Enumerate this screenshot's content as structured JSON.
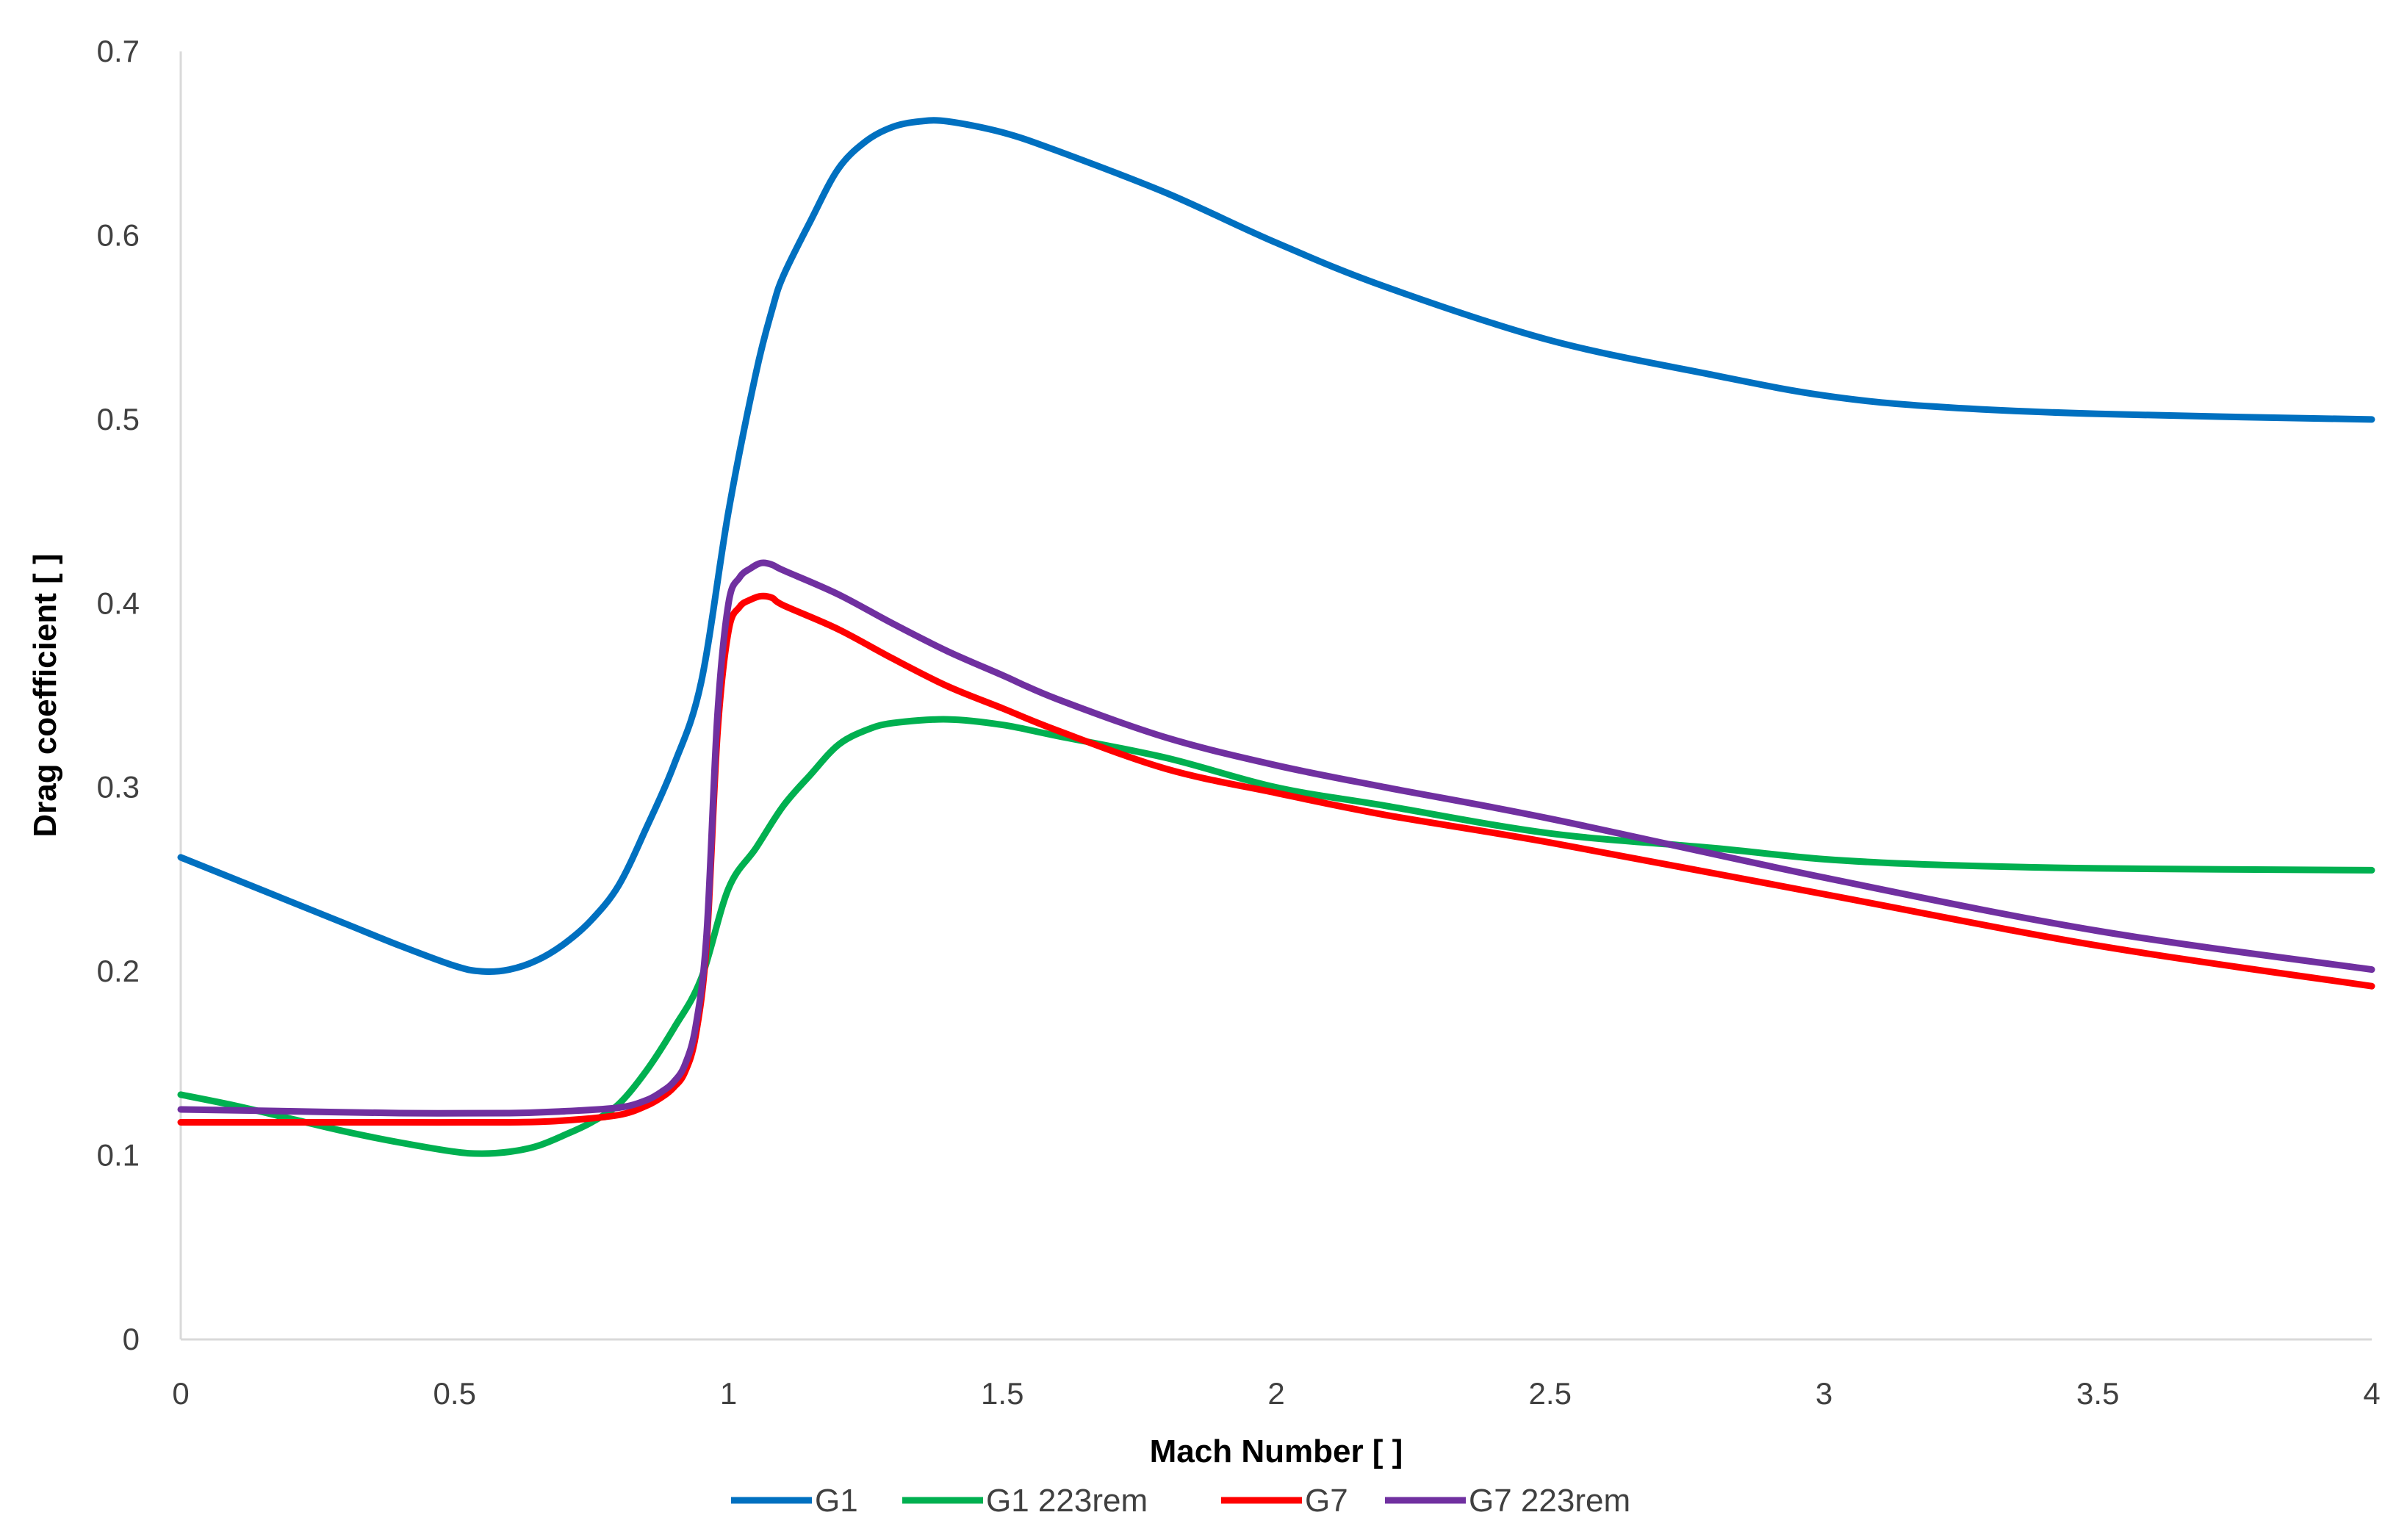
{
  "chart_data": {
    "type": "line",
    "xlabel": "Mach Number [ ]",
    "ylabel": "Drag coefficient [ ]",
    "xlim": [
      0,
      4
    ],
    "ylim": [
      0,
      0.7
    ],
    "xticks": [
      "0",
      "0.5",
      "1",
      "1.5",
      "2",
      "2.5",
      "3",
      "3.5",
      "4"
    ],
    "yticks": [
      "0",
      "0.1",
      "0.2",
      "0.3",
      "0.4",
      "0.5",
      "0.6",
      "0.7"
    ],
    "grid": false,
    "legend_position": "bottom",
    "series": [
      {
        "name": "G1",
        "color": "#0070C0",
        "x": [
          0,
          0.1,
          0.2,
          0.3,
          0.4,
          0.5,
          0.55,
          0.6,
          0.65,
          0.7,
          0.75,
          0.8,
          0.85,
          0.9,
          0.95,
          1.0,
          1.05,
          1.08,
          1.1,
          1.15,
          1.2,
          1.25,
          1.3,
          1.35,
          1.4,
          1.5,
          1.6,
          1.8,
          2.0,
          2.2,
          2.5,
          2.8,
          3.0,
          3.2,
          3.5,
          4.0
        ],
        "y": [
          0.262,
          0.25,
          0.238,
          0.226,
          0.214,
          0.203,
          0.2,
          0.201,
          0.206,
          0.215,
          0.228,
          0.247,
          0.278,
          0.312,
          0.357,
          0.45,
          0.525,
          0.56,
          0.578,
          0.608,
          0.636,
          0.651,
          0.659,
          0.662,
          0.662,
          0.656,
          0.646,
          0.623,
          0.596,
          0.572,
          0.543,
          0.524,
          0.513,
          0.507,
          0.503,
          0.5
        ]
      },
      {
        "name": "G1 223rem",
        "color": "#00B050",
        "x": [
          0,
          0.1,
          0.2,
          0.3,
          0.4,
          0.5,
          0.55,
          0.6,
          0.65,
          0.7,
          0.75,
          0.8,
          0.85,
          0.9,
          0.95,
          1.0,
          1.05,
          1.1,
          1.15,
          1.2,
          1.25,
          1.3,
          1.4,
          1.5,
          1.6,
          1.8,
          2.0,
          2.2,
          2.5,
          2.8,
          3.0,
          3.2,
          3.5,
          4.0
        ],
        "y": [
          0.133,
          0.127,
          0.12,
          0.113,
          0.107,
          0.102,
          0.101,
          0.102,
          0.105,
          0.111,
          0.118,
          0.128,
          0.146,
          0.169,
          0.196,
          0.245,
          0.267,
          0.29,
          0.307,
          0.323,
          0.331,
          0.335,
          0.337,
          0.334,
          0.328,
          0.316,
          0.3,
          0.29,
          0.275,
          0.267,
          0.261,
          0.258,
          0.256,
          0.255
        ]
      },
      {
        "name": "G7",
        "color": "#FF0000",
        "x": [
          0,
          0.2,
          0.4,
          0.6,
          0.7,
          0.8,
          0.85,
          0.88,
          0.9,
          0.92,
          0.94,
          0.96,
          0.98,
          1.0,
          1.02,
          1.04,
          1.06,
          1.08,
          1.1,
          1.2,
          1.3,
          1.4,
          1.5,
          1.6,
          1.8,
          2.0,
          2.2,
          2.5,
          3.0,
          3.5,
          4.0
        ],
        "y": [
          0.118,
          0.118,
          0.118,
          0.118,
          0.119,
          0.122,
          0.127,
          0.132,
          0.137,
          0.145,
          0.165,
          0.215,
          0.33,
          0.385,
          0.398,
          0.402,
          0.404,
          0.403,
          0.399,
          0.386,
          0.37,
          0.355,
          0.343,
          0.331,
          0.31,
          0.297,
          0.285,
          0.27,
          0.242,
          0.214,
          0.192
        ]
      },
      {
        "name": "G7 223rem",
        "color": "#7030A0",
        "x": [
          0,
          0.2,
          0.4,
          0.6,
          0.7,
          0.8,
          0.85,
          0.88,
          0.9,
          0.92,
          0.94,
          0.96,
          0.98,
          1.0,
          1.02,
          1.04,
          1.06,
          1.08,
          1.1,
          1.2,
          1.3,
          1.4,
          1.5,
          1.6,
          1.8,
          2.0,
          2.2,
          2.5,
          3.0,
          3.5,
          4.0
        ],
        "y": [
          0.125,
          0.124,
          0.123,
          0.123,
          0.124,
          0.126,
          0.13,
          0.135,
          0.14,
          0.149,
          0.17,
          0.22,
          0.34,
          0.4,
          0.414,
          0.419,
          0.422,
          0.421,
          0.418,
          0.405,
          0.389,
          0.374,
          0.361,
          0.348,
          0.327,
          0.312,
          0.3,
          0.283,
          0.251,
          0.222,
          0.201
        ]
      }
    ]
  }
}
